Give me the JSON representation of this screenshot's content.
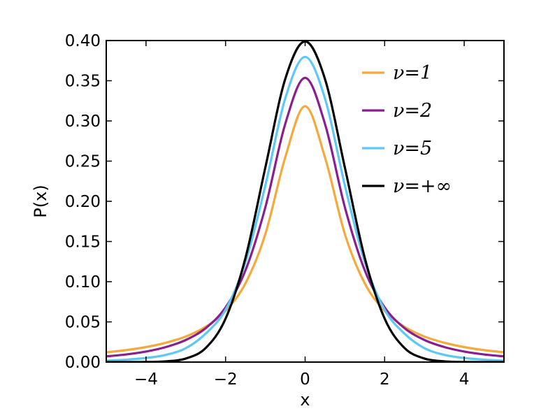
{
  "chart_data": {
    "type": "line",
    "title": "",
    "xlabel": "x",
    "ylabel": "P(x)",
    "xlim": [
      -5,
      5
    ],
    "ylim": [
      0.0,
      0.4
    ],
    "xticks": [
      -4,
      -2,
      0,
      2,
      4
    ],
    "xtick_labels": [
      "−4",
      "−2",
      "0",
      "2",
      "4"
    ],
    "yticks": [
      0.0,
      0.05,
      0.1,
      0.15,
      0.2,
      0.25,
      0.3,
      0.35,
      0.4
    ],
    "ytick_labels": [
      "0.00",
      "0.05",
      "0.10",
      "0.15",
      "0.20",
      "0.25",
      "0.30",
      "0.35",
      "0.40"
    ],
    "grid": false,
    "legend_position": "top-right",
    "series": [
      {
        "name": "ν=1",
        "color": "#f5a93b",
        "x": [
          -5.0,
          -4.5,
          -4.0,
          -3.5,
          -3.0,
          -2.5,
          -2.0,
          -1.5,
          -1.0,
          -0.5,
          0.0,
          0.5,
          1.0,
          1.5,
          2.0,
          2.5,
          3.0,
          3.5,
          4.0,
          4.5,
          5.0
        ],
        "y": [
          0.0122,
          0.0149,
          0.0187,
          0.0241,
          0.0318,
          0.0439,
          0.0637,
          0.0979,
          0.1592,
          0.2546,
          0.3183,
          0.2546,
          0.1592,
          0.0979,
          0.0637,
          0.0439,
          0.0318,
          0.0241,
          0.0187,
          0.0149,
          0.0122
        ]
      },
      {
        "name": "ν=2",
        "color": "#8b1e8e",
        "x": [
          -5.0,
          -4.5,
          -4.0,
          -3.5,
          -3.0,
          -2.5,
          -2.0,
          -1.5,
          -1.0,
          -0.5,
          0.0,
          0.5,
          1.0,
          1.5,
          2.0,
          2.5,
          3.0,
          3.5,
          4.0,
          4.5,
          5.0
        ],
        "y": [
          0.0071,
          0.0095,
          0.0131,
          0.0187,
          0.0275,
          0.0422,
          0.068,
          0.1141,
          0.1925,
          0.2962,
          0.3536,
          0.2962,
          0.1925,
          0.1141,
          0.068,
          0.0422,
          0.0275,
          0.0187,
          0.0131,
          0.0095,
          0.0071
        ]
      },
      {
        "name": "ν=5",
        "color": "#5bc8f5",
        "x": [
          -5.0,
          -4.5,
          -4.0,
          -3.5,
          -3.0,
          -2.5,
          -2.0,
          -1.5,
          -1.0,
          -0.5,
          0.0,
          0.5,
          1.0,
          1.5,
          2.0,
          2.5,
          3.0,
          3.5,
          4.0,
          4.5,
          5.0
        ],
        "y": [
          0.0018,
          0.003,
          0.0051,
          0.009,
          0.0173,
          0.0354,
          0.0651,
          0.1245,
          0.2197,
          0.3279,
          0.3796,
          0.3279,
          0.2197,
          0.1245,
          0.0651,
          0.0354,
          0.0173,
          0.009,
          0.0051,
          0.003,
          0.0018
        ]
      },
      {
        "name": "ν=+∞",
        "color": "#000000",
        "x": [
          -5.0,
          -4.5,
          -4.0,
          -3.5,
          -3.0,
          -2.5,
          -2.0,
          -1.5,
          -1.0,
          -0.5,
          0.0,
          0.5,
          1.0,
          1.5,
          2.0,
          2.5,
          3.0,
          3.5,
          4.0,
          4.5,
          5.0
        ],
        "y": [
          0.0,
          0.0,
          0.0001,
          0.0009,
          0.0044,
          0.0175,
          0.054,
          0.1295,
          0.242,
          0.3521,
          0.3989,
          0.3521,
          0.242,
          0.1295,
          0.054,
          0.0175,
          0.0044,
          0.0009,
          0.0001,
          0.0,
          0.0
        ]
      }
    ]
  }
}
